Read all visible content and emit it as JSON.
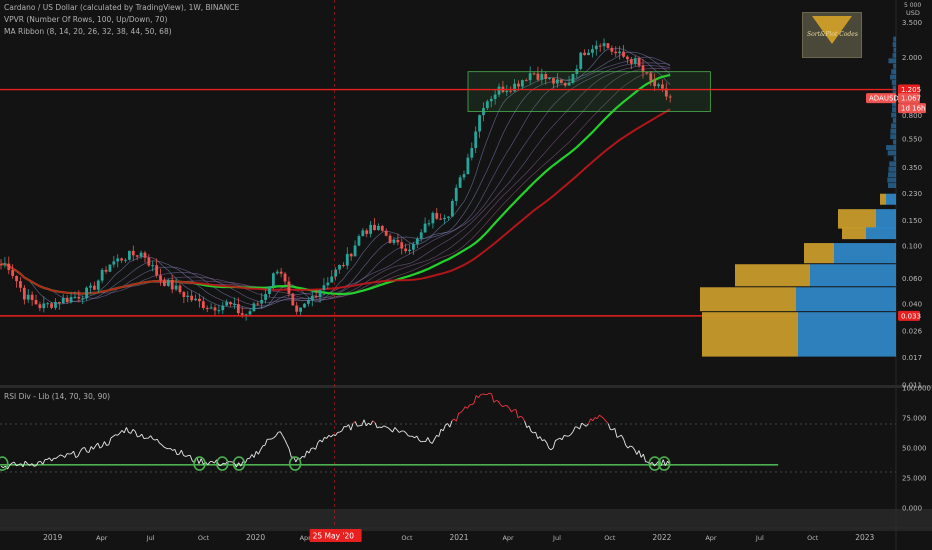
{
  "header": {
    "title": "Cardano / US Dollar (calculated by TradingView), 1W, BINANCE",
    "indicator_vpvr": "VPVR (Number Of Rows, 100, Up/Down, 70)",
    "indicator_ma": "MA Ribbon (8, 14, 20, 26, 32, 38, 44, 50, 68)",
    "indicator_rsi": "RSI Div - Lib (14, 70, 30, 90)"
  },
  "logo_text": "Sort&Plot Codes",
  "price_axis": {
    "unit_top": "5 000",
    "currency": "USD",
    "ticks": [
      "3.500",
      "2.000",
      "1.205",
      "0.800",
      "0.550",
      "0.350",
      "0.230",
      "0.150",
      "0.100",
      "0.060",
      "0.040",
      "0.033",
      "0.026",
      "0.017",
      "0.011"
    ]
  },
  "rsi_axis": {
    "ticks": [
      "100.000",
      "75.000",
      "50.000",
      "25.000",
      "0.000"
    ]
  },
  "time_axis": {
    "ticks": [
      "2019",
      "Apr",
      "Jul",
      "Oct",
      "2020",
      "Apr",
      "Jul",
      "Oct",
      "2021",
      "Apr",
      "Jul",
      "Oct",
      "2022",
      "Apr",
      "Jul",
      "Oct",
      "2023"
    ],
    "cursor_label": "25 May '20"
  },
  "tags": {
    "level_high": "1.205",
    "symbol": "ADAUSD",
    "last_price": "1.067",
    "countdown": "1d 16h",
    "level_low": "0.033"
  },
  "colors": {
    "background": "#131313",
    "up_candle": "#26a69a",
    "down_candle": "#ef5350",
    "level_line": "#e8201f",
    "ma_green": "#24d12b",
    "ma_red": "#c3161b",
    "vpvr_up": "#2f86c6",
    "vpvr_down": "#c79a2a",
    "rsi_line": "#e8e8e8",
    "rsi_overbought": "#f23645",
    "divergence": "#4caf50"
  },
  "chart_data": [
    {
      "type": "candlestick",
      "title": "Cardano / US Dollar (calculated by TradingView), 1W, BINANCE",
      "yscale": "log",
      "ylim": [
        0.011,
        5
      ],
      "xlim": [
        "2018-10-01",
        "2023-03-01"
      ],
      "price_series": {
        "dates": [
          "2018-10",
          "2018-11",
          "2018-12",
          "2019-01",
          "2019-02",
          "2019-03",
          "2019-04",
          "2019-05",
          "2019-06",
          "2019-07",
          "2019-08",
          "2019-09",
          "2019-10",
          "2019-11",
          "2019-12",
          "2020-01",
          "2020-02",
          "2020-03",
          "2020-04",
          "2020-05",
          "2020-06",
          "2020-07",
          "2020-08",
          "2020-09",
          "2020-10",
          "2020-11",
          "2020-12",
          "2021-01",
          "2021-02",
          "2021-03",
          "2021-04",
          "2021-05",
          "2021-06",
          "2021-07",
          "2021-08",
          "2021-09",
          "2021-10",
          "2021-11",
          "2021-12",
          "2022-01"
        ],
        "close": [
          0.075,
          0.045,
          0.038,
          0.042,
          0.045,
          0.05,
          0.075,
          0.085,
          0.09,
          0.06,
          0.05,
          0.042,
          0.038,
          0.04,
          0.033,
          0.043,
          0.075,
          0.032,
          0.045,
          0.06,
          0.08,
          0.13,
          0.13,
          0.1,
          0.1,
          0.16,
          0.17,
          0.35,
          0.95,
          1.2,
          1.3,
          1.6,
          1.4,
          1.25,
          2.2,
          2.6,
          2.1,
          1.9,
          1.35,
          1.067
        ]
      },
      "levels": [
        {
          "value": 1.205
        },
        {
          "value": 0.033
        }
      ],
      "ma_ribbon": {
        "periods": [
          8,
          14,
          20,
          26,
          32,
          38,
          44,
          50,
          68
        ]
      },
      "vpvr": {
        "rows": 100,
        "mode": "Up/Down",
        "value_area": 70
      }
    },
    {
      "type": "line",
      "title": "RSI Div - Lib (14, 70, 30, 90)",
      "ylim": [
        0,
        100
      ],
      "levels": [
        70,
        30
      ],
      "x": [
        "2018-10",
        "2018-12",
        "2019-02",
        "2019-04",
        "2019-05",
        "2019-07",
        "2019-09",
        "2019-10",
        "2019-12",
        "2020-02",
        "2020-03",
        "2020-05",
        "2020-07",
        "2020-09",
        "2020-11",
        "2021-01",
        "2021-02",
        "2021-04",
        "2021-06",
        "2021-08",
        "2021-09",
        "2021-11",
        "2021-12",
        "2022-01"
      ],
      "values": [
        35,
        38,
        45,
        55,
        66,
        55,
        40,
        38,
        36,
        65,
        38,
        60,
        72,
        65,
        55,
        82,
        97,
        80,
        50,
        70,
        75,
        48,
        38,
        38
      ]
    }
  ]
}
